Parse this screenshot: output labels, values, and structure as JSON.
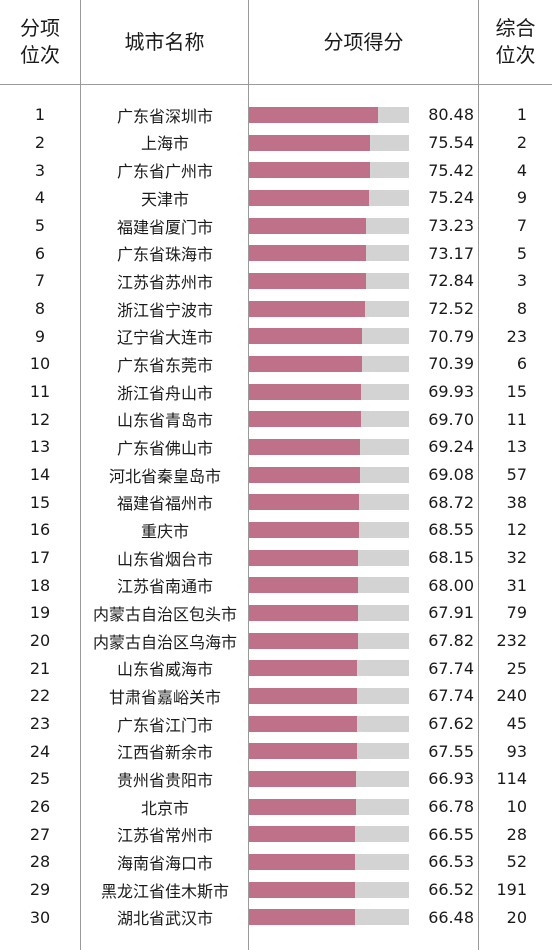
{
  "headers": {
    "rank": "分项\n位次",
    "city": "城市名称",
    "score": "分项得分",
    "overall": "综合\n位次"
  },
  "colors": {
    "bar_fill": "#c0718a",
    "bar_track": "#d3d3d3"
  },
  "chart_data": {
    "type": "table",
    "columns": [
      "分项位次",
      "城市名称",
      "分项得分",
      "综合位次"
    ],
    "bar_scale_max": 100,
    "rows": [
      {
        "rank": "1",
        "city": "广东省深圳市",
        "score": "80.48",
        "overall": "1"
      },
      {
        "rank": "2",
        "city": "上海市",
        "score": "75.54",
        "overall": "2"
      },
      {
        "rank": "3",
        "city": "广东省广州市",
        "score": "75.42",
        "overall": "4"
      },
      {
        "rank": "4",
        "city": "天津市",
        "score": "75.24",
        "overall": "9"
      },
      {
        "rank": "5",
        "city": "福建省厦门市",
        "score": "73.23",
        "overall": "7"
      },
      {
        "rank": "6",
        "city": "广东省珠海市",
        "score": "73.17",
        "overall": "5"
      },
      {
        "rank": "7",
        "city": "江苏省苏州市",
        "score": "72.84",
        "overall": "3"
      },
      {
        "rank": "8",
        "city": "浙江省宁波市",
        "score": "72.52",
        "overall": "8"
      },
      {
        "rank": "9",
        "city": "辽宁省大连市",
        "score": "70.79",
        "overall": "23"
      },
      {
        "rank": "10",
        "city": "广东省东莞市",
        "score": "70.39",
        "overall": "6"
      },
      {
        "rank": "11",
        "city": "浙江省舟山市",
        "score": "69.93",
        "overall": "15"
      },
      {
        "rank": "12",
        "city": "山东省青岛市",
        "score": "69.70",
        "overall": "11"
      },
      {
        "rank": "13",
        "city": "广东省佛山市",
        "score": "69.24",
        "overall": "13"
      },
      {
        "rank": "14",
        "city": "河北省秦皇岛市",
        "score": "69.08",
        "overall": "57"
      },
      {
        "rank": "15",
        "city": "福建省福州市",
        "score": "68.72",
        "overall": "38"
      },
      {
        "rank": "16",
        "city": "重庆市",
        "score": "68.55",
        "overall": "12"
      },
      {
        "rank": "17",
        "city": "山东省烟台市",
        "score": "68.15",
        "overall": "32"
      },
      {
        "rank": "18",
        "city": "江苏省南通市",
        "score": "68.00",
        "overall": "31"
      },
      {
        "rank": "19",
        "city": "内蒙古自治区包头市",
        "score": "67.91",
        "overall": "79"
      },
      {
        "rank": "20",
        "city": "内蒙古自治区乌海市",
        "score": "67.82",
        "overall": "232"
      },
      {
        "rank": "21",
        "city": "山东省威海市",
        "score": "67.74",
        "overall": "25"
      },
      {
        "rank": "22",
        "city": "甘肃省嘉峪关市",
        "score": "67.74",
        "overall": "240"
      },
      {
        "rank": "23",
        "city": "广东省江门市",
        "score": "67.62",
        "overall": "45"
      },
      {
        "rank": "24",
        "city": "江西省新余市",
        "score": "67.55",
        "overall": "93"
      },
      {
        "rank": "25",
        "city": "贵州省贵阳市",
        "score": "66.93",
        "overall": "114"
      },
      {
        "rank": "26",
        "city": "北京市",
        "score": "66.78",
        "overall": "10"
      },
      {
        "rank": "27",
        "city": "江苏省常州市",
        "score": "66.55",
        "overall": "28"
      },
      {
        "rank": "28",
        "city": "海南省海口市",
        "score": "66.53",
        "overall": "52"
      },
      {
        "rank": "29",
        "city": "黑龙江省佳木斯市",
        "score": "66.52",
        "overall": "191"
      },
      {
        "rank": "30",
        "city": "湖北省武汉市",
        "score": "66.48",
        "overall": "20"
      }
    ]
  }
}
